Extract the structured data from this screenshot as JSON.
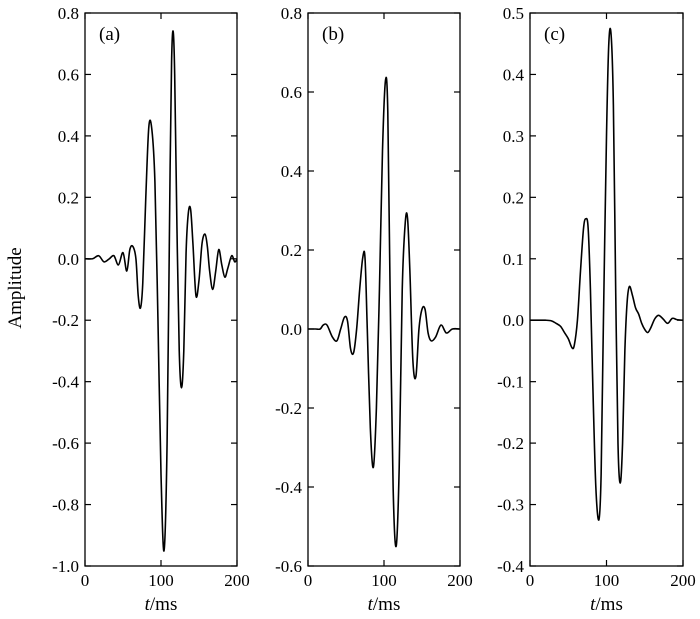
{
  "ylabel": "Amplitude",
  "chart_data": [
    {
      "type": "line",
      "panel_label": "(a)",
      "xlabel_italic": "t",
      "xlabel_rest": "/ms",
      "xlim": [
        0,
        200
      ],
      "ylim": [
        -1.0,
        0.8
      ],
      "xticks": [
        0,
        100,
        200
      ],
      "xtick_labels": [
        "0",
        "100",
        "200"
      ],
      "yticks": [
        0.8,
        0.6,
        0.4,
        0.2,
        0.0,
        -0.2,
        -0.4,
        -0.6,
        -0.8,
        -1.0
      ],
      "ytick_labels": [
        "0.8",
        "0.6",
        "0.4",
        "0.2",
        "0.0",
        "-0.2",
        "-0.4",
        "-0.6",
        "-0.8",
        "-1.0"
      ],
      "series": [
        {
          "x": [
            0,
            10,
            18,
            25,
            32,
            38,
            44,
            50,
            55,
            59,
            63,
            67,
            70,
            73,
            76,
            80,
            84,
            88,
            92,
            96,
            100,
            104,
            108,
            112,
            114,
            116,
            118,
            121,
            124,
            127,
            130,
            133,
            136,
            139,
            142,
            146,
            150,
            154,
            158,
            161,
            164,
            168,
            172,
            176,
            180,
            184,
            188,
            193,
            197,
            200
          ],
          "y": [
            0.0,
            0.0,
            0.01,
            -0.01,
            0.0,
            0.01,
            -0.02,
            0.02,
            -0.04,
            0.03,
            0.04,
            0.0,
            -0.12,
            -0.16,
            -0.08,
            0.2,
            0.43,
            0.42,
            0.25,
            -0.2,
            -0.7,
            -0.95,
            -0.6,
            0.3,
            0.65,
            0.74,
            0.6,
            0.1,
            -0.3,
            -0.42,
            -0.3,
            0.02,
            0.15,
            0.16,
            0.05,
            -0.12,
            -0.07,
            0.05,
            0.08,
            0.04,
            -0.04,
            -0.1,
            -0.04,
            0.03,
            -0.02,
            -0.06,
            -0.03,
            0.01,
            -0.01,
            0.0
          ]
        }
      ]
    },
    {
      "type": "line",
      "panel_label": "(b)",
      "xlabel_italic": "t",
      "xlabel_rest": "/ms",
      "xlim": [
        0,
        200
      ],
      "ylim": [
        -0.6,
        0.8
      ],
      "xticks": [
        0,
        100,
        200
      ],
      "xtick_labels": [
        "0",
        "100",
        "200"
      ],
      "yticks": [
        0.8,
        0.6,
        0.4,
        0.2,
        0.0,
        -0.2,
        -0.4,
        -0.6
      ],
      "ytick_labels": [
        "0.8",
        "0.6",
        "0.4",
        "0.2",
        "0.0",
        "-0.2",
        "-0.4",
        "-0.6"
      ],
      "series": [
        {
          "x": [
            0,
            10,
            16,
            20,
            25,
            32,
            38,
            43,
            48,
            52,
            56,
            60,
            64,
            68,
            72,
            75,
            78,
            82,
            86,
            90,
            94,
            98,
            102,
            105,
            108,
            112,
            116,
            120,
            124,
            128,
            131,
            134,
            138,
            142,
            146,
            150,
            154,
            158,
            162,
            168,
            175,
            182,
            190,
            200
          ],
          "y": [
            0.0,
            0.0,
            0.0,
            0.01,
            0.01,
            -0.02,
            -0.03,
            0.0,
            0.03,
            0.02,
            -0.05,
            -0.06,
            0.0,
            0.1,
            0.18,
            0.18,
            0.0,
            -0.25,
            -0.35,
            -0.2,
            0.1,
            0.45,
            0.63,
            0.55,
            0.1,
            -0.4,
            -0.55,
            -0.35,
            0.1,
            0.27,
            0.28,
            0.15,
            -0.08,
            -0.12,
            0.0,
            0.05,
            0.05,
            -0.01,
            -0.03,
            -0.02,
            0.01,
            -0.01,
            0.0,
            0.0
          ]
        }
      ]
    },
    {
      "type": "line",
      "panel_label": "(c)",
      "xlabel_italic": "t",
      "xlabel_rest": "/ms",
      "xlim": [
        0,
        200
      ],
      "ylim": [
        -0.4,
        0.5
      ],
      "xticks": [
        0,
        100,
        200
      ],
      "xtick_labels": [
        "0",
        "100",
        "200"
      ],
      "yticks": [
        0.5,
        0.4,
        0.3,
        0.2,
        0.1,
        0.0,
        -0.1,
        -0.2,
        -0.3,
        -0.4
      ],
      "ytick_labels": [
        "0.5",
        "0.4",
        "0.3",
        "0.2",
        "0.1",
        "0.0",
        "-0.1",
        "-0.2",
        "-0.3",
        "-0.4"
      ],
      "series": [
        {
          "x": [
            0,
            10,
            20,
            28,
            34,
            40,
            45,
            50,
            55,
            58,
            62,
            66,
            70,
            73,
            76,
            79,
            82,
            86,
            90,
            93,
            96,
            100,
            103,
            106,
            109,
            112,
            115,
            118,
            121,
            124,
            127,
            130,
            134,
            138,
            142,
            146,
            150,
            154,
            158,
            163,
            168,
            174,
            180,
            186,
            192,
            200
          ],
          "y": [
            0.0,
            0.0,
            0.0,
            -0.001,
            -0.005,
            -0.01,
            -0.02,
            -0.03,
            -0.045,
            -0.04,
            0.0,
            0.08,
            0.15,
            0.165,
            0.15,
            0.05,
            -0.1,
            -0.27,
            -0.325,
            -0.25,
            0.0,
            0.3,
            0.45,
            0.465,
            0.35,
            0.05,
            -0.2,
            -0.265,
            -0.2,
            -0.05,
            0.03,
            0.055,
            0.04,
            0.02,
            0.01,
            -0.005,
            -0.015,
            -0.02,
            -0.012,
            0.002,
            0.008,
            0.002,
            -0.005,
            0.003,
            0.001,
            0.0
          ]
        }
      ]
    }
  ]
}
